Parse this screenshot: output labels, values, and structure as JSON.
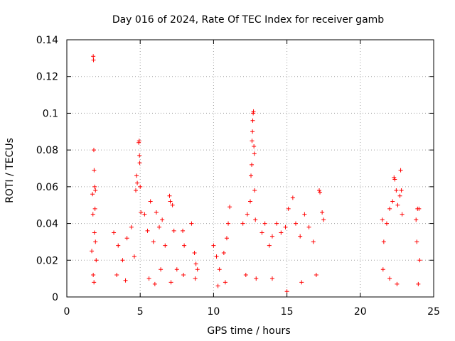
{
  "chart_data": {
    "type": "scatter",
    "title": "Day 016 of 2024, Rate Of TEC Index for receiver gamb",
    "xlabel": "GPS time / hours",
    "ylabel": "ROTI / TECUs",
    "xlim": [
      0,
      25
    ],
    "ylim": [
      0,
      0.14
    ],
    "xticks": [
      0,
      5,
      10,
      15,
      20,
      25
    ],
    "xtick_labels": [
      "0",
      "5",
      "10",
      "15",
      "20",
      "25"
    ],
    "yticks": [
      0,
      0.02,
      0.04,
      0.06,
      0.08,
      0.1,
      0.12,
      0.14
    ],
    "ytick_labels": [
      "0",
      "0.02",
      "0.04",
      "0.06",
      "0.08",
      "0.1",
      "0.12",
      "0.14"
    ],
    "grid": true,
    "marker": "+",
    "color": "#ff0000",
    "series": [
      {
        "name": "ROTI",
        "points": [
          [
            1.8,
            0.131
          ],
          [
            1.82,
            0.129
          ],
          [
            1.84,
            0.08
          ],
          [
            1.86,
            0.069
          ],
          [
            1.75,
            0.056
          ],
          [
            1.9,
            0.06
          ],
          [
            1.95,
            0.058
          ],
          [
            1.78,
            0.045
          ],
          [
            1.92,
            0.048
          ],
          [
            1.88,
            0.035
          ],
          [
            1.7,
            0.025
          ],
          [
            2.0,
            0.02
          ],
          [
            1.8,
            0.012
          ],
          [
            1.85,
            0.008
          ],
          [
            1.95,
            0.03
          ],
          [
            3.2,
            0.035
          ],
          [
            3.5,
            0.028
          ],
          [
            3.8,
            0.02
          ],
          [
            4.1,
            0.032
          ],
          [
            4.4,
            0.038
          ],
          [
            4.6,
            0.022
          ],
          [
            4.7,
            0.058
          ],
          [
            4.75,
            0.066
          ],
          [
            4.8,
            0.062
          ],
          [
            4.9,
            0.084
          ],
          [
            4.93,
            0.085
          ],
          [
            4.95,
            0.077
          ],
          [
            4.97,
            0.073
          ],
          [
            5.0,
            0.06
          ],
          [
            5.05,
            0.046
          ],
          [
            3.4,
            0.012
          ],
          [
            4.0,
            0.009
          ],
          [
            5.3,
            0.045
          ],
          [
            5.5,
            0.036
          ],
          [
            5.7,
            0.052
          ],
          [
            5.9,
            0.03
          ],
          [
            6.1,
            0.046
          ],
          [
            6.3,
            0.038
          ],
          [
            6.5,
            0.042
          ],
          [
            6.7,
            0.028
          ],
          [
            5.6,
            0.01
          ],
          [
            6.0,
            0.007
          ],
          [
            6.4,
            0.015
          ],
          [
            7.0,
            0.055
          ],
          [
            7.05,
            0.052
          ],
          [
            7.2,
            0.05
          ],
          [
            7.3,
            0.036
          ],
          [
            7.5,
            0.015
          ],
          [
            7.1,
            0.008
          ],
          [
            7.9,
            0.036
          ],
          [
            8.0,
            0.028
          ],
          [
            7.95,
            0.012
          ],
          [
            8.5,
            0.04
          ],
          [
            8.7,
            0.024
          ],
          [
            8.8,
            0.018
          ],
          [
            8.9,
            0.015
          ],
          [
            8.75,
            0.01
          ],
          [
            10.0,
            0.028
          ],
          [
            10.2,
            0.022
          ],
          [
            10.4,
            0.015
          ],
          [
            10.7,
            0.024
          ],
          [
            10.9,
            0.032
          ],
          [
            11.1,
            0.049
          ],
          [
            11.0,
            0.04
          ],
          [
            10.8,
            0.008
          ],
          [
            10.3,
            0.006
          ],
          [
            12.0,
            0.04
          ],
          [
            12.3,
            0.045
          ],
          [
            12.5,
            0.052
          ],
          [
            12.55,
            0.066
          ],
          [
            12.6,
            0.072
          ],
          [
            12.62,
            0.085
          ],
          [
            12.65,
            0.09
          ],
          [
            12.67,
            0.096
          ],
          [
            12.7,
            0.1
          ],
          [
            12.72,
            0.101
          ],
          [
            12.75,
            0.082
          ],
          [
            12.78,
            0.078
          ],
          [
            12.8,
            0.058
          ],
          [
            12.85,
            0.042
          ],
          [
            12.2,
            0.012
          ],
          [
            12.9,
            0.01
          ],
          [
            13.3,
            0.035
          ],
          [
            13.5,
            0.04
          ],
          [
            13.8,
            0.028
          ],
          [
            14.0,
            0.033
          ],
          [
            14.3,
            0.04
          ],
          [
            14.6,
            0.035
          ],
          [
            14.9,
            0.038
          ],
          [
            15.1,
            0.048
          ],
          [
            15.4,
            0.054
          ],
          [
            15.6,
            0.04
          ],
          [
            15.9,
            0.033
          ],
          [
            16.2,
            0.045
          ],
          [
            16.5,
            0.038
          ],
          [
            16.8,
            0.03
          ],
          [
            17.2,
            0.058
          ],
          [
            17.25,
            0.057
          ],
          [
            17.4,
            0.046
          ],
          [
            17.5,
            0.042
          ],
          [
            14.0,
            0.01
          ],
          [
            15.0,
            0.003
          ],
          [
            16.0,
            0.008
          ],
          [
            17.0,
            0.012
          ],
          [
            21.5,
            0.042
          ],
          [
            21.6,
            0.03
          ],
          [
            21.55,
            0.015
          ],
          [
            21.8,
            0.04
          ],
          [
            22.0,
            0.048
          ],
          [
            22.2,
            0.052
          ],
          [
            22.3,
            0.065
          ],
          [
            22.35,
            0.064
          ],
          [
            22.45,
            0.058
          ],
          [
            22.55,
            0.05
          ],
          [
            22.7,
            0.055
          ],
          [
            22.75,
            0.069
          ],
          [
            22.8,
            0.058
          ],
          [
            22.85,
            0.045
          ],
          [
            22.0,
            0.01
          ],
          [
            22.5,
            0.007
          ],
          [
            23.8,
            0.042
          ],
          [
            23.9,
            0.048
          ],
          [
            24.0,
            0.048
          ],
          [
            23.85,
            0.03
          ],
          [
            24.05,
            0.02
          ],
          [
            23.95,
            0.007
          ]
        ]
      }
    ]
  }
}
